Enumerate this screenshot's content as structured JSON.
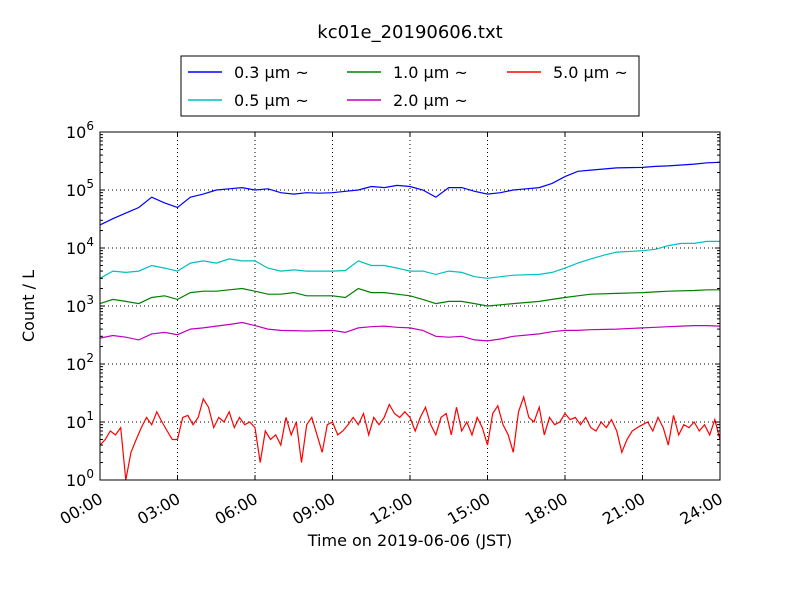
{
  "chart_data": {
    "type": "line",
    "title": "kc01e_20190606.txt",
    "xlabel": "Time on 2019-06-06 (JST)",
    "ylabel": "Count / L",
    "yscale": "log",
    "ylim": [
      1,
      1000000
    ],
    "xlim_hours": [
      0,
      24
    ],
    "grid": true,
    "legend_position": "top-center",
    "x_ticks": [
      "00:00",
      "03:00",
      "06:00",
      "09:00",
      "12:00",
      "15:00",
      "18:00",
      "21:00",
      "24:00"
    ],
    "y_ticks": [
      {
        "base": "10",
        "exp": "0"
      },
      {
        "base": "10",
        "exp": "1"
      },
      {
        "base": "10",
        "exp": "2"
      },
      {
        "base": "10",
        "exp": "3"
      },
      {
        "base": "10",
        "exp": "4"
      },
      {
        "base": "10",
        "exp": "5"
      },
      {
        "base": "10",
        "exp": "6"
      }
    ],
    "series": [
      {
        "name": "0.3 μm ~",
        "color": "#0000ff",
        "points": [
          [
            0,
            25000
          ],
          [
            0.5,
            32000
          ],
          [
            1,
            40000
          ],
          [
            1.5,
            50000
          ],
          [
            2,
            75000
          ],
          [
            2.5,
            60000
          ],
          [
            3,
            50000
          ],
          [
            3.5,
            75000
          ],
          [
            4,
            85000
          ],
          [
            4.5,
            100000
          ],
          [
            5,
            105000
          ],
          [
            5.5,
            110000
          ],
          [
            6,
            100000
          ],
          [
            6.5,
            105000
          ],
          [
            7,
            90000
          ],
          [
            7.5,
            85000
          ],
          [
            8,
            90000
          ],
          [
            8.5,
            88000
          ],
          [
            9,
            90000
          ],
          [
            9.5,
            95000
          ],
          [
            10,
            100000
          ],
          [
            10.5,
            115000
          ],
          [
            11,
            110000
          ],
          [
            11.5,
            120000
          ],
          [
            12,
            115000
          ],
          [
            12.5,
            100000
          ],
          [
            13,
            75000
          ],
          [
            13.5,
            110000
          ],
          [
            14,
            110000
          ],
          [
            14.5,
            95000
          ],
          [
            15,
            85000
          ],
          [
            15.5,
            90000
          ],
          [
            16,
            100000
          ],
          [
            16.5,
            105000
          ],
          [
            17,
            110000
          ],
          [
            17.5,
            130000
          ],
          [
            18,
            170000
          ],
          [
            18.5,
            210000
          ],
          [
            19,
            220000
          ],
          [
            19.5,
            230000
          ],
          [
            20,
            240000
          ],
          [
            21,
            245000
          ],
          [
            21.5,
            255000
          ],
          [
            22,
            260000
          ],
          [
            22.5,
            270000
          ],
          [
            23,
            280000
          ],
          [
            23.5,
            295000
          ],
          [
            24,
            300000
          ]
        ]
      },
      {
        "name": "0.5 μm ~",
        "color": "#00bfbf",
        "points": [
          [
            0,
            3000
          ],
          [
            0.5,
            4000
          ],
          [
            1,
            3800
          ],
          [
            1.5,
            4000
          ],
          [
            2,
            5000
          ],
          [
            2.5,
            4500
          ],
          [
            3,
            4000
          ],
          [
            3.5,
            5500
          ],
          [
            4,
            6000
          ],
          [
            4.5,
            5500
          ],
          [
            5,
            6500
          ],
          [
            5.5,
            6000
          ],
          [
            6,
            6000
          ],
          [
            6.5,
            4500
          ],
          [
            7,
            4000
          ],
          [
            7.5,
            4200
          ],
          [
            8,
            4000
          ],
          [
            9,
            4000
          ],
          [
            9.5,
            4100
          ],
          [
            10,
            6000
          ],
          [
            10.5,
            5000
          ],
          [
            11,
            5000
          ],
          [
            11.5,
            4500
          ],
          [
            12,
            4000
          ],
          [
            12.5,
            4000
          ],
          [
            13,
            3500
          ],
          [
            13.5,
            4000
          ],
          [
            14,
            3800
          ],
          [
            14.5,
            3200
          ],
          [
            15,
            3000
          ],
          [
            15.5,
            3200
          ],
          [
            16,
            3400
          ],
          [
            17,
            3500
          ],
          [
            17.5,
            3800
          ],
          [
            18,
            4500
          ],
          [
            18.5,
            5500
          ],
          [
            19,
            6500
          ],
          [
            19.5,
            7500
          ],
          [
            20,
            8500
          ],
          [
            21,
            9000
          ],
          [
            21.5,
            9500
          ],
          [
            22,
            11000
          ],
          [
            22.5,
            12000
          ],
          [
            23,
            12000
          ],
          [
            23.5,
            13000
          ],
          [
            24,
            13000
          ]
        ]
      },
      {
        "name": "1.0 μm ~",
        "color": "#008000",
        "points": [
          [
            0,
            1100
          ],
          [
            0.5,
            1300
          ],
          [
            1,
            1200
          ],
          [
            1.5,
            1100
          ],
          [
            2,
            1400
          ],
          [
            2.5,
            1500
          ],
          [
            3,
            1300
          ],
          [
            3.5,
            1700
          ],
          [
            4,
            1800
          ],
          [
            4.5,
            1800
          ],
          [
            5,
            1900
          ],
          [
            5.5,
            2000
          ],
          [
            6,
            1800
          ],
          [
            6.5,
            1600
          ],
          [
            7,
            1600
          ],
          [
            7.5,
            1700
          ],
          [
            8,
            1500
          ],
          [
            9,
            1500
          ],
          [
            9.5,
            1400
          ],
          [
            10,
            2000
          ],
          [
            10.5,
            1700
          ],
          [
            11,
            1700
          ],
          [
            11.5,
            1600
          ],
          [
            12,
            1500
          ],
          [
            12.5,
            1300
          ],
          [
            13,
            1100
          ],
          [
            13.5,
            1200
          ],
          [
            14,
            1200
          ],
          [
            14.5,
            1100
          ],
          [
            15,
            1000
          ],
          [
            15.5,
            1050
          ],
          [
            16,
            1100
          ],
          [
            17,
            1200
          ],
          [
            17.5,
            1300
          ],
          [
            18,
            1400
          ],
          [
            18.5,
            1500
          ],
          [
            19,
            1600
          ],
          [
            20,
            1650
          ],
          [
            21,
            1700
          ],
          [
            21.5,
            1750
          ],
          [
            22,
            1800
          ],
          [
            23,
            1850
          ],
          [
            23.5,
            1900
          ],
          [
            24,
            1900
          ]
        ]
      },
      {
        "name": "2.0 μm ~",
        "color": "#bf00bf",
        "points": [
          [
            0,
            280
          ],
          [
            0.5,
            310
          ],
          [
            1,
            290
          ],
          [
            1.5,
            260
          ],
          [
            2,
            330
          ],
          [
            2.5,
            350
          ],
          [
            3,
            320
          ],
          [
            3.5,
            400
          ],
          [
            4,
            420
          ],
          [
            4.5,
            450
          ],
          [
            5,
            480
          ],
          [
            5.5,
            520
          ],
          [
            6,
            460
          ],
          [
            6.5,
            400
          ],
          [
            7,
            380
          ],
          [
            8,
            370
          ],
          [
            9,
            380
          ],
          [
            9.5,
            350
          ],
          [
            10,
            420
          ],
          [
            10.5,
            440
          ],
          [
            11,
            450
          ],
          [
            11.5,
            430
          ],
          [
            12,
            420
          ],
          [
            12.5,
            380
          ],
          [
            13,
            300
          ],
          [
            13.5,
            290
          ],
          [
            14,
            300
          ],
          [
            14.5,
            260
          ],
          [
            15,
            250
          ],
          [
            15.5,
            270
          ],
          [
            16,
            300
          ],
          [
            17,
            330
          ],
          [
            17.5,
            360
          ],
          [
            18,
            380
          ],
          [
            18.5,
            380
          ],
          [
            19,
            390
          ],
          [
            20,
            400
          ],
          [
            21,
            420
          ],
          [
            21.5,
            430
          ],
          [
            22,
            440
          ],
          [
            22.5,
            450
          ],
          [
            23,
            460
          ],
          [
            23.5,
            460
          ],
          [
            24,
            450
          ]
        ]
      },
      {
        "name": "5.0 μm ~",
        "color": "#ff0000",
        "points": [
          [
            0,
            4
          ],
          [
            0.2,
            5
          ],
          [
            0.4,
            7
          ],
          [
            0.6,
            6
          ],
          [
            0.8,
            8
          ],
          [
            1,
            1
          ],
          [
            1.2,
            3
          ],
          [
            1.4,
            5
          ],
          [
            1.6,
            8
          ],
          [
            1.8,
            12
          ],
          [
            2,
            9
          ],
          [
            2.2,
            15
          ],
          [
            2.4,
            10
          ],
          [
            2.6,
            7
          ],
          [
            2.8,
            5
          ],
          [
            3,
            5
          ],
          [
            3.2,
            12
          ],
          [
            3.4,
            13
          ],
          [
            3.6,
            9
          ],
          [
            3.8,
            12
          ],
          [
            4,
            25
          ],
          [
            4.2,
            18
          ],
          [
            4.4,
            8
          ],
          [
            4.6,
            12
          ],
          [
            4.8,
            10
          ],
          [
            5,
            15
          ],
          [
            5.2,
            8
          ],
          [
            5.4,
            12
          ],
          [
            5.6,
            9
          ],
          [
            5.8,
            10
          ],
          [
            6,
            8
          ],
          [
            6.2,
            2
          ],
          [
            6.4,
            7
          ],
          [
            6.6,
            5
          ],
          [
            6.8,
            6
          ],
          [
            7,
            4
          ],
          [
            7.2,
            12
          ],
          [
            7.4,
            6
          ],
          [
            7.6,
            10
          ],
          [
            7.8,
            2
          ],
          [
            8,
            9
          ],
          [
            8.2,
            12
          ],
          [
            8.4,
            6
          ],
          [
            8.6,
            3
          ],
          [
            8.8,
            9
          ],
          [
            9,
            10
          ],
          [
            9.2,
            6
          ],
          [
            9.4,
            7
          ],
          [
            9.6,
            9
          ],
          [
            9.8,
            12
          ],
          [
            10,
            9
          ],
          [
            10.2,
            14
          ],
          [
            10.4,
            6
          ],
          [
            10.6,
            12
          ],
          [
            10.8,
            9
          ],
          [
            11,
            12
          ],
          [
            11.2,
            20
          ],
          [
            11.4,
            14
          ],
          [
            11.6,
            12
          ],
          [
            11.8,
            15
          ],
          [
            12,
            12
          ],
          [
            12.2,
            7
          ],
          [
            12.4,
            12
          ],
          [
            12.6,
            18
          ],
          [
            12.8,
            9
          ],
          [
            13,
            6
          ],
          [
            13.2,
            12
          ],
          [
            13.4,
            14
          ],
          [
            13.6,
            6
          ],
          [
            13.8,
            18
          ],
          [
            14,
            7
          ],
          [
            14.2,
            10
          ],
          [
            14.4,
            6
          ],
          [
            14.6,
            12
          ],
          [
            14.8,
            8
          ],
          [
            15,
            4
          ],
          [
            15.2,
            14
          ],
          [
            15.4,
            19
          ],
          [
            15.6,
            9
          ],
          [
            15.8,
            6
          ],
          [
            16,
            3
          ],
          [
            16.2,
            15
          ],
          [
            16.4,
            27
          ],
          [
            16.6,
            12
          ],
          [
            16.8,
            10
          ],
          [
            17,
            18
          ],
          [
            17.2,
            6
          ],
          [
            17.4,
            12
          ],
          [
            17.6,
            9
          ],
          [
            17.8,
            10
          ],
          [
            18,
            14
          ],
          [
            18.2,
            11
          ],
          [
            18.4,
            12
          ],
          [
            18.6,
            9
          ],
          [
            18.8,
            12
          ],
          [
            19,
            8
          ],
          [
            19.2,
            7
          ],
          [
            19.4,
            10
          ],
          [
            19.6,
            8
          ],
          [
            19.8,
            11
          ],
          [
            20,
            7
          ],
          [
            20.2,
            3
          ],
          [
            20.4,
            5
          ],
          [
            20.6,
            7
          ],
          [
            20.8,
            8
          ],
          [
            21,
            9
          ],
          [
            21.2,
            10
          ],
          [
            21.4,
            7
          ],
          [
            21.6,
            12
          ],
          [
            21.8,
            8
          ],
          [
            22,
            4
          ],
          [
            22.2,
            13
          ],
          [
            22.4,
            6
          ],
          [
            22.6,
            9
          ],
          [
            22.8,
            8
          ],
          [
            23,
            10
          ],
          [
            23.2,
            7
          ],
          [
            23.4,
            9
          ],
          [
            23.6,
            6
          ],
          [
            23.8,
            11
          ],
          [
            24,
            5
          ]
        ]
      }
    ]
  }
}
